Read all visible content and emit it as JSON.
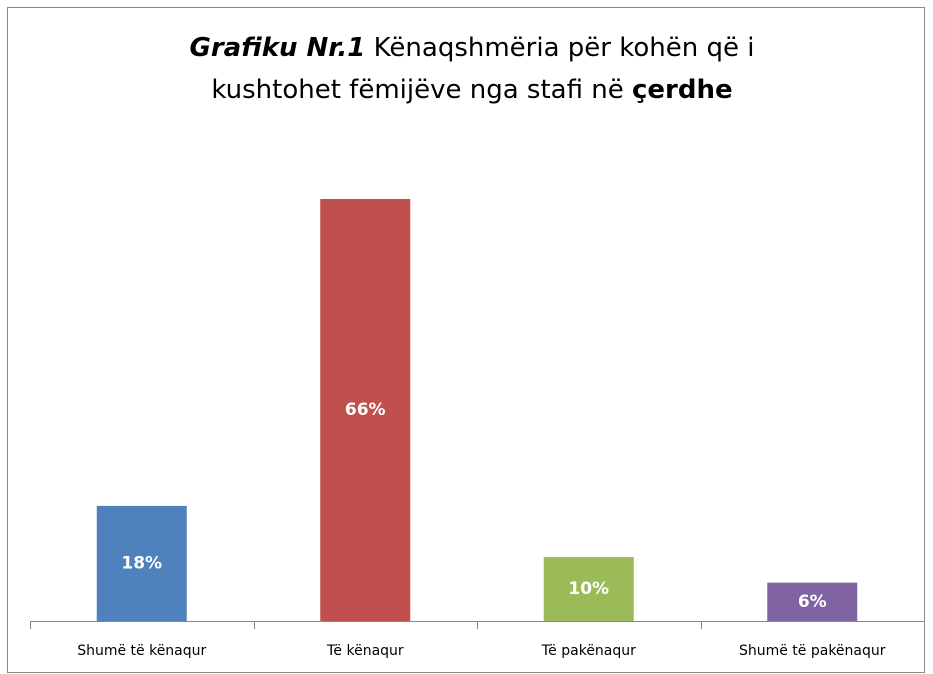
{
  "chart_data": {
    "type": "bar",
    "title": [
      "Grafiku Nr.1",
      "Kënaqshmëria për kohën që i",
      "kushtohet fëmijëve nga stafi në",
      "çerdhe"
    ],
    "categories": [
      "Shumë të kënaqur",
      "Të kënaqur",
      "Të pakënaqur",
      "Shumë të pakënaqur"
    ],
    "values": [
      18,
      66,
      10,
      6
    ],
    "value_labels": [
      "18%",
      "66%",
      "10%",
      "6%"
    ],
    "colors": [
      "#4f81bd",
      "#c0504d",
      "#9bbb59",
      "#8064a2"
    ]
  }
}
